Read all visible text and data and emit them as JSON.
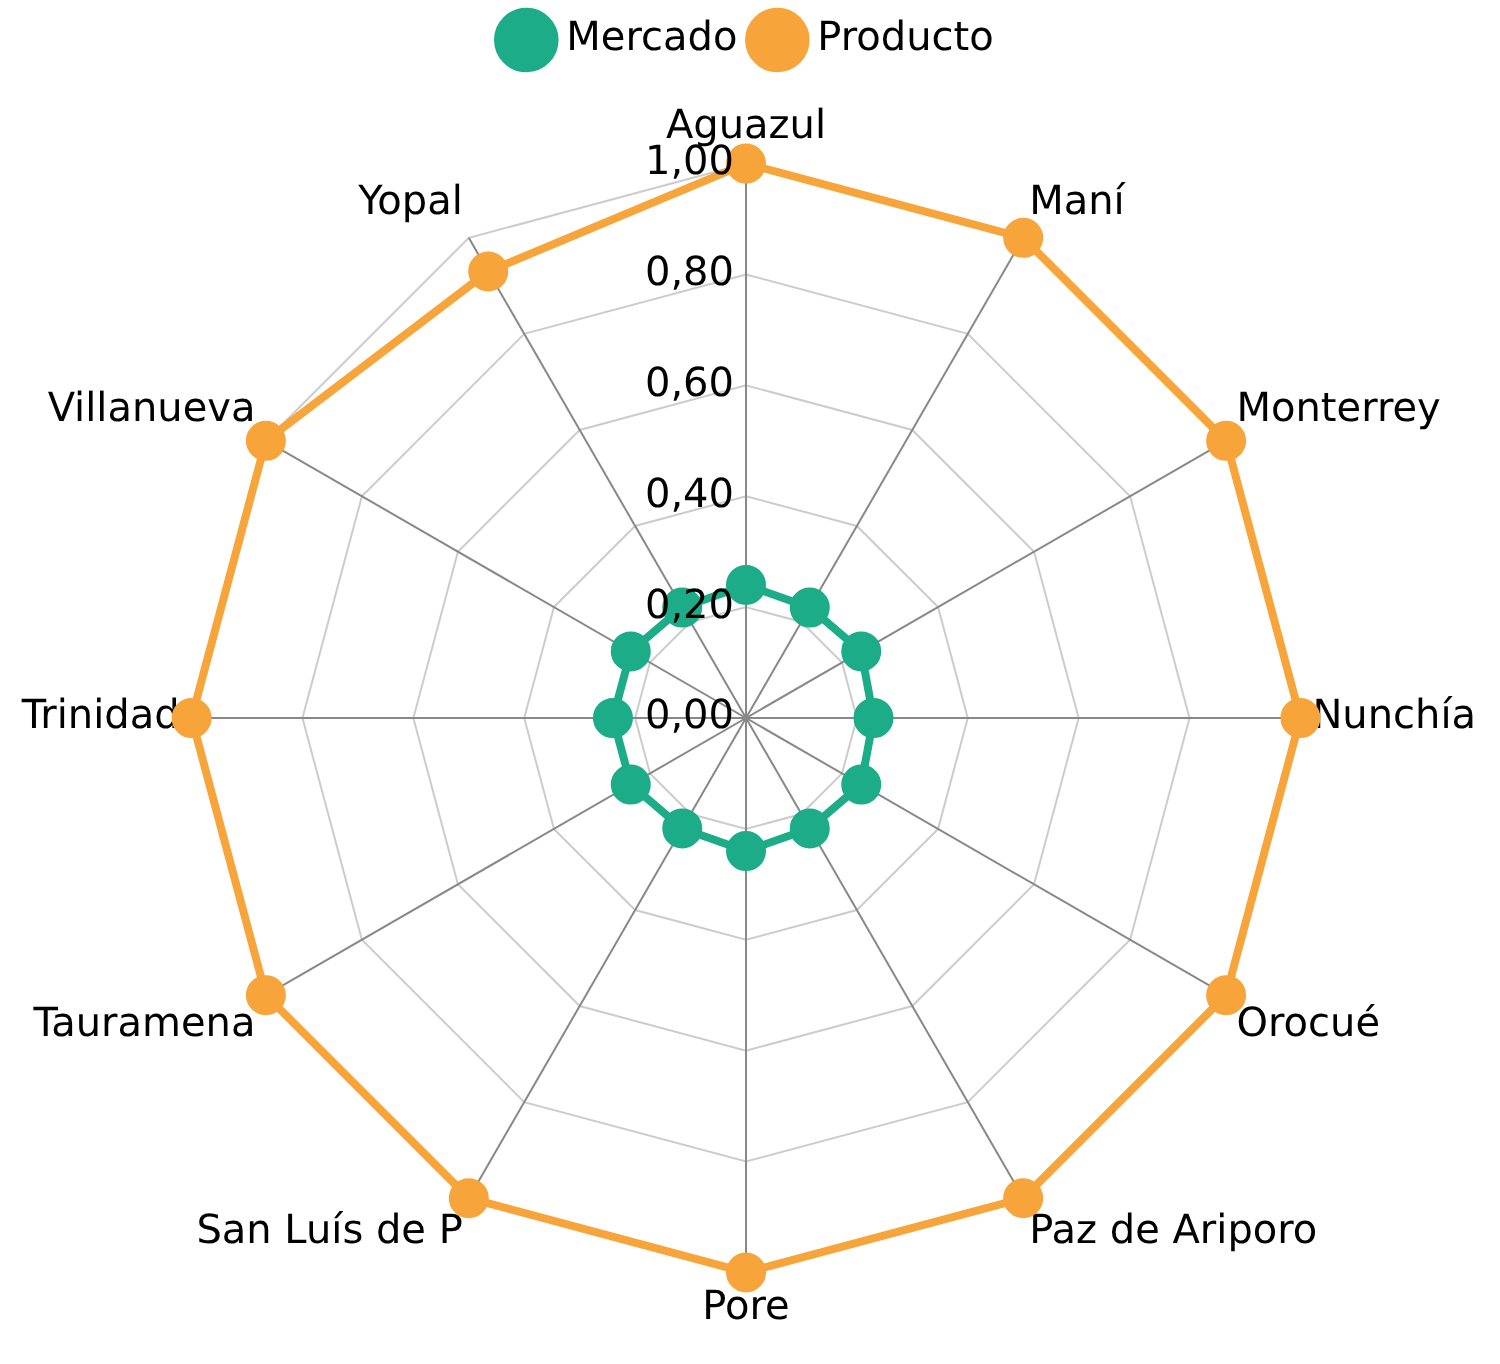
{
  "chart_data": {
    "type": "radar",
    "categories": [
      "Aguazul",
      "Maní",
      "Monterrey",
      "Nunchía",
      "Orocué",
      "Paz de Ariporo",
      "Pore",
      "San Luís de P",
      "Tauramena",
      "Trinidad",
      "Villanueva",
      "Yopal"
    ],
    "series": [
      {
        "name": "Mercado",
        "color": "#1cac88",
        "values": [
          0.24,
          0.23,
          0.24,
          0.23,
          0.24,
          0.23,
          0.24,
          0.23,
          0.24,
          0.24,
          0.24,
          0.23
        ]
      },
      {
        "name": "Producto",
        "color": "#f7a43b",
        "values": [
          1,
          1,
          1,
          1,
          1,
          1,
          1,
          1,
          1,
          1,
          1,
          0.93
        ]
      }
    ],
    "ylim": [
      0,
      1
    ],
    "yticks": [
      {
        "value": 0,
        "label": "0,00"
      },
      {
        "value": 0.2,
        "label": "0,20"
      },
      {
        "value": 0.4,
        "label": "0,40"
      },
      {
        "value": 0.6,
        "label": "0,60"
      },
      {
        "value": 0.8,
        "label": "0,80"
      },
      {
        "value": 1,
        "label": "1,00"
      }
    ],
    "grid": true,
    "legend": "top",
    "marker": "circle"
  }
}
